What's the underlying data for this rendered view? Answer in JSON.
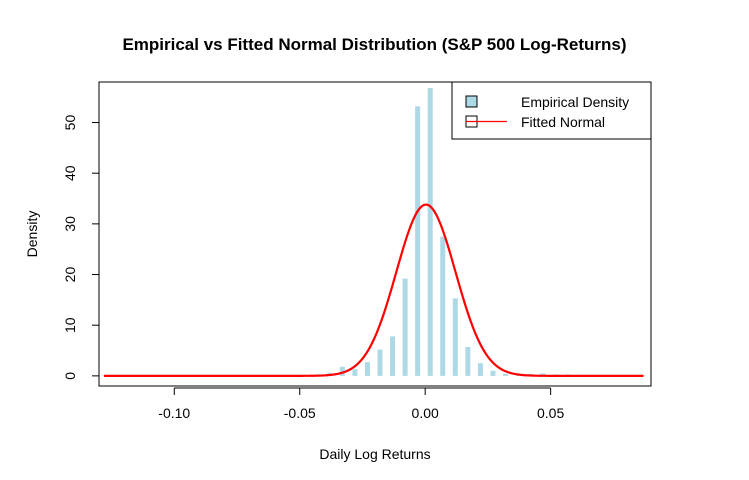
{
  "chart_data": {
    "type": "bar",
    "title": "Empirical vs Fitted Normal Distribution (S&P 500 Log-Returns)",
    "xlabel": "Daily Log Returns",
    "ylabel": "Density",
    "xlim": [
      -0.13,
      0.09
    ],
    "ylim": [
      -2,
      58
    ],
    "xticks": [
      -0.1,
      -0.05,
      0.0,
      0.05
    ],
    "xtick_labels": [
      "-0.10",
      "-0.05",
      "0.00",
      "0.05"
    ],
    "yticks": [
      0,
      10,
      20,
      30,
      40,
      50
    ],
    "ytick_labels": [
      "0",
      "10",
      "20",
      "30",
      "40",
      "50"
    ],
    "grid": false,
    "legend_position": "top-right",
    "bar_color": "#add8e6",
    "line_color": "#ff0000",
    "series": [
      {
        "name": "Empirical Density",
        "kind": "bar",
        "x": [
          -0.128,
          -0.123,
          -0.118,
          -0.113,
          -0.108,
          -0.103,
          -0.098,
          -0.093,
          -0.088,
          -0.083,
          -0.078,
          -0.073,
          -0.068,
          -0.063,
          -0.058,
          -0.053,
          -0.048,
          -0.043,
          -0.038,
          -0.033,
          -0.028,
          -0.023,
          -0.018,
          -0.013,
          -0.008,
          -0.003,
          0.002,
          0.007,
          0.012,
          0.017,
          0.022,
          0.027,
          0.032,
          0.037,
          0.042,
          0.047,
          0.052,
          0.057,
          0.062,
          0.067,
          0.072,
          0.077,
          0.082,
          0.087
        ],
        "values": [
          0.1,
          0,
          0,
          0,
          0,
          0,
          0,
          0,
          0,
          0,
          0,
          0,
          0,
          0,
          0,
          0.1,
          0.2,
          0.3,
          0.6,
          1.8,
          1.3,
          2.7,
          5.2,
          7.8,
          19.2,
          53.2,
          56.8,
          27.5,
          15.3,
          5.7,
          2.5,
          1.0,
          0.4,
          0.2,
          0.4,
          0.5,
          0.3,
          0.3,
          0.2,
          0.1,
          0,
          0,
          0,
          0.1
        ]
      },
      {
        "name": "Fitted Normal",
        "kind": "line",
        "mean": 0.0003,
        "sd": 0.0118
      }
    ]
  }
}
